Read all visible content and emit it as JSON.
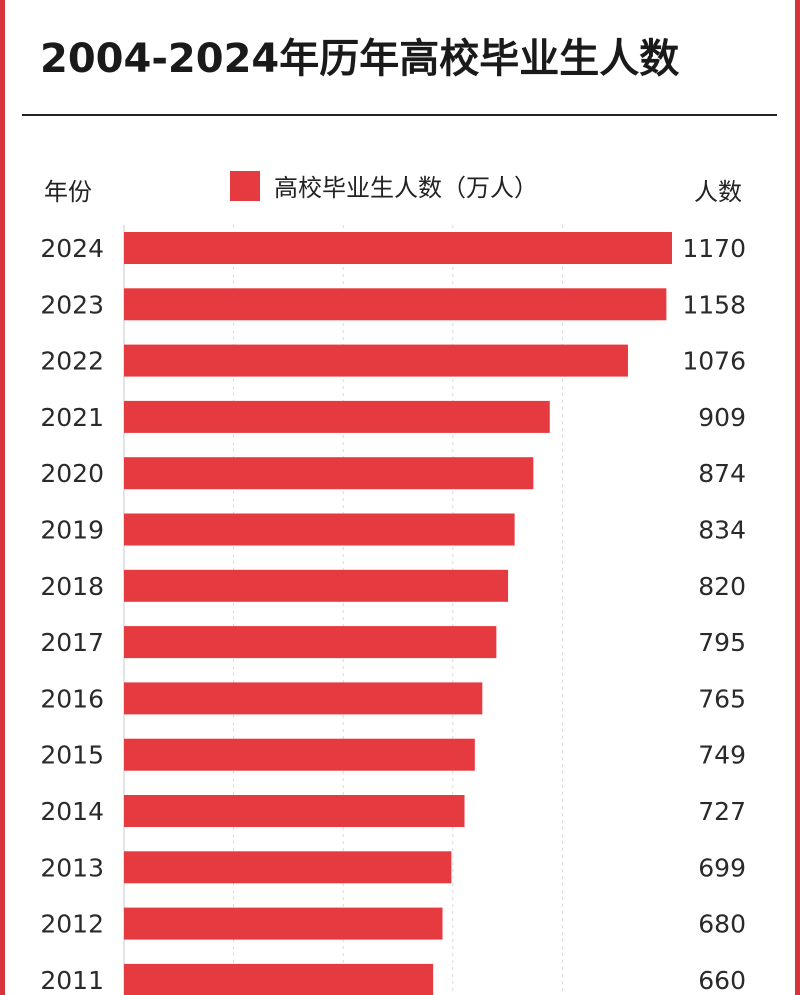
{
  "title": "2004-2024年历年高校毕业生人数",
  "header": {
    "year_label": "年份",
    "count_label": "人数"
  },
  "colors": {
    "bar": "#e53a3f",
    "frame": "#d6343a",
    "grid": "#d9d9d9",
    "axis": "#c8c8c8"
  },
  "chart_data": {
    "type": "bar",
    "orientation": "horizontal",
    "title": "2004-2024年历年高校毕业生人数",
    "xlim": [
      0,
      1170
    ],
    "grid": true,
    "legend_position": "top",
    "series": [
      {
        "name": "高校毕业生人数（万人）",
        "color": "#e53a3f"
      }
    ],
    "categories": [
      "2024",
      "2023",
      "2022",
      "2021",
      "2020",
      "2019",
      "2018",
      "2017",
      "2016",
      "2015",
      "2014",
      "2013",
      "2012",
      "2011"
    ],
    "values": [
      1170,
      1158,
      1076,
      909,
      874,
      834,
      820,
      795,
      765,
      749,
      727,
      699,
      680,
      660
    ],
    "value_labels": [
      "1170",
      "1158",
      "1076",
      "909",
      "874",
      "834",
      "820",
      "795",
      "765",
      "749",
      "727",
      "699",
      "680",
      "660"
    ]
  }
}
